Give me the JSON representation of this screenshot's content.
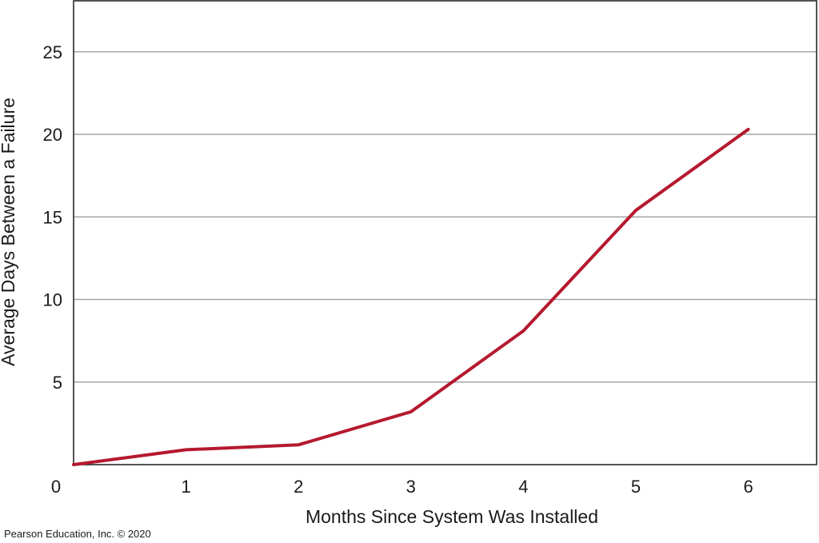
{
  "chart_data": {
    "type": "line",
    "title": "",
    "xlabel": "Months Since System Was Installed",
    "ylabel": "Average Days Between a Failure",
    "xlim": [
      0,
      6.6
    ],
    "ylim": [
      0,
      27.5
    ],
    "x_ticks": [
      0,
      1,
      2,
      3,
      4,
      5,
      6
    ],
    "y_ticks": [
      5,
      10,
      15,
      20,
      25
    ],
    "origin_label": "0",
    "grid": "horizontal",
    "legend": "none",
    "series": [
      {
        "x": [
          0,
          1,
          2,
          3,
          4,
          5,
          6
        ],
        "y": [
          0,
          0.9,
          1.2,
          3.2,
          8.1,
          15.4,
          20.3
        ],
        "color": "#b5192e"
      }
    ]
  },
  "credit": "Pearson Education, Inc. © 2020"
}
